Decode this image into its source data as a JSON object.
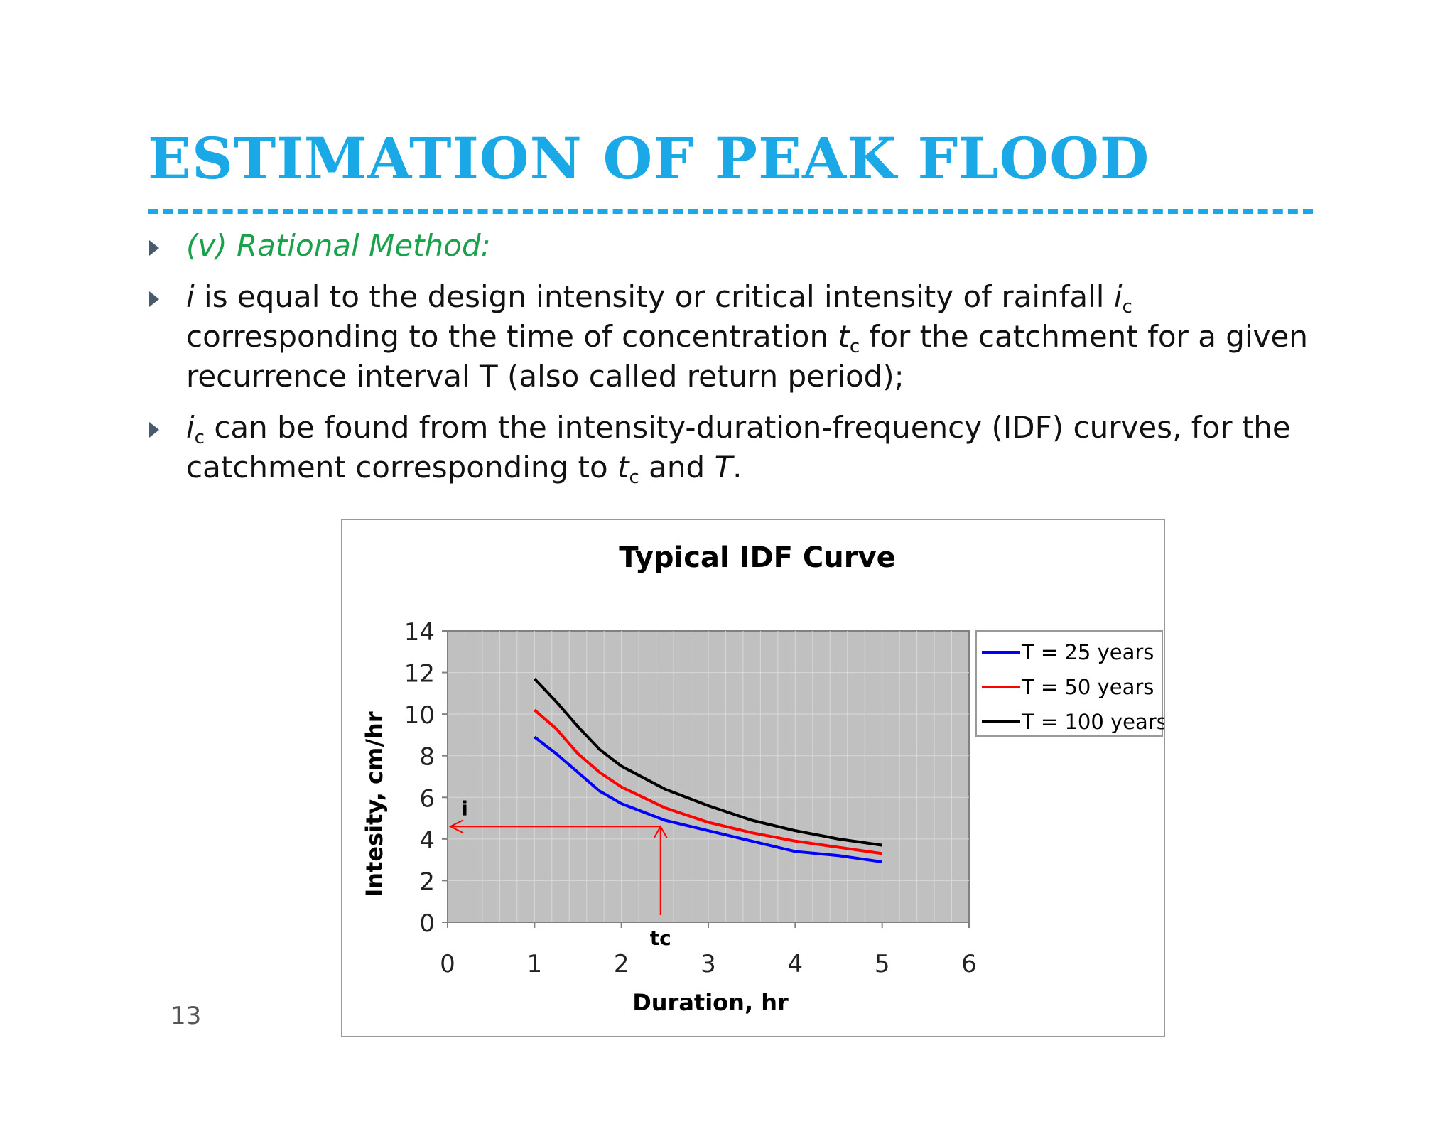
{
  "slide": {
    "title": "ESTIMATION OF PEAK FLOOD",
    "page_number": "13",
    "bullets": [
      {
        "text": "(v) Rational Method:"
      },
      {
        "pre_i": "i",
        "part1": " is equal to the design intensity or critical intensity of rainfall ",
        "ic_i": "i",
        "ic_sub": "c",
        "part2": " corresponding to the time of concentration ",
        "tc_t": "t",
        "tc_sub": "c",
        "part3": " for the catchment for a given recurrence interval T (also called return period);"
      },
      {
        "ic_i": "i",
        "ic_sub": "c",
        "part1": " can be found from the intensity-duration-frequency (IDF) curves, for the catchment corresponding to ",
        "tc_t": "t",
        "tc_sub": "c",
        "part2": " and ",
        "T": "T",
        "end": "."
      }
    ]
  },
  "chart_data": {
    "type": "line",
    "title": "Typical IDF Curve",
    "xlabel": "Duration, hr",
    "ylabel": "Intesity, cm/hr",
    "xlim": [
      0,
      6
    ],
    "ylim": [
      0,
      14
    ],
    "x_ticks": [
      0,
      1,
      2,
      3,
      4,
      5,
      6
    ],
    "y_ticks": [
      0,
      2,
      4,
      6,
      8,
      10,
      12,
      14
    ],
    "grid": true,
    "plot_background": "#c0c0c0",
    "legend": "right",
    "x": [
      1,
      1.25,
      1.5,
      1.75,
      2,
      2.5,
      3,
      3.5,
      4,
      4.5,
      5
    ],
    "series": [
      {
        "name": "T  = 25 years",
        "color": "#0000ff",
        "values": [
          8.9,
          8.1,
          7.2,
          6.3,
          5.7,
          4.9,
          4.4,
          3.9,
          3.4,
          3.2,
          2.9
        ]
      },
      {
        "name": "T  = 50 years",
        "color": "#ff0000",
        "values": [
          10.2,
          9.3,
          8.1,
          7.2,
          6.5,
          5.5,
          4.8,
          4.3,
          3.9,
          3.6,
          3.3
        ]
      },
      {
        "name": "T  = 100 years",
        "color": "#000000",
        "values": [
          11.7,
          10.6,
          9.4,
          8.3,
          7.5,
          6.4,
          5.6,
          4.9,
          4.4,
          4.0,
          3.7
        ]
      }
    ],
    "annotations": [
      {
        "label": "tc",
        "x": 2.45,
        "color": "#ff0000"
      },
      {
        "label": "i",
        "y": 4.6,
        "color": "#ff0000"
      }
    ]
  }
}
